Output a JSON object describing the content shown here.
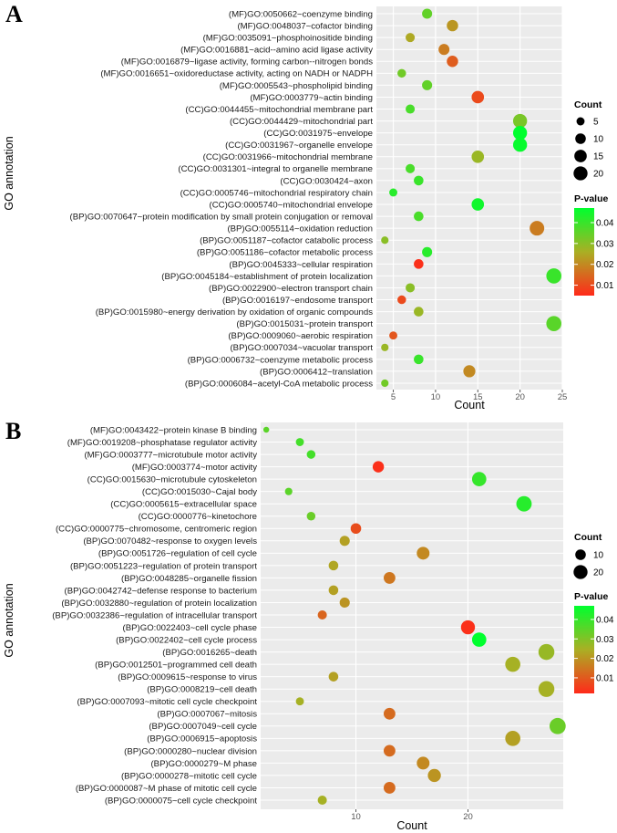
{
  "chart_data": [
    {
      "panel": "A",
      "type": "scatter",
      "xlabel": "Count",
      "ylabel": "GO annotation",
      "xlim": [
        3,
        25
      ],
      "xticks": [
        5,
        10,
        15,
        20,
        25
      ],
      "grid": true,
      "legend": {
        "size_title": "Count",
        "size_breaks": [
          5,
          10,
          15,
          20
        ],
        "color_title": "P-value",
        "color_breaks": [
          0.04,
          0.03,
          0.02,
          0.01
        ],
        "color_range": [
          0.005,
          0.047
        ],
        "colors": [
          "#ff2a1a",
          "#00ff2e"
        ],
        "placement": "right"
      },
      "points": [
        {
          "term": "(MF)GO:0050662~coenzyme binding",
          "count": 9,
          "p": 0.035
        },
        {
          "term": "(MF)GO:0048037~cofactor binding",
          "count": 12,
          "p": 0.022
        },
        {
          "term": "(MF)GO:0035091~phosphoinositide binding",
          "count": 7,
          "p": 0.025
        },
        {
          "term": "(MF)GO:0016881~acid--amino acid ligase activity",
          "count": 11,
          "p": 0.018
        },
        {
          "term": "(MF)GO:0016879~ligase activity, forming carbon--nitrogen bonds",
          "count": 12,
          "p": 0.013
        },
        {
          "term": "(MF)GO:0016651~oxidoreductase activity, acting on NADH or NADPH",
          "count": 6,
          "p": 0.033
        },
        {
          "term": "(MF)GO:0005543~phospholipid binding",
          "count": 9,
          "p": 0.035
        },
        {
          "term": "(MF)GO:0003779~actin binding",
          "count": 15,
          "p": 0.01
        },
        {
          "term": "(CC)GO:0044455~mitochondrial membrane part",
          "count": 7,
          "p": 0.038
        },
        {
          "term": "(CC)GO:0044429~mitochondrial part",
          "count": 20,
          "p": 0.032
        },
        {
          "term": "(CC)GO:0031975~envelope",
          "count": 20,
          "p": 0.047
        },
        {
          "term": "(CC)GO:0031967~organelle envelope",
          "count": 20,
          "p": 0.046
        },
        {
          "term": "(CC)GO:0031966~mitochondrial membrane",
          "count": 15,
          "p": 0.028
        },
        {
          "term": "(CC)GO:0031301~integral to organelle membrane",
          "count": 7,
          "p": 0.038
        },
        {
          "term": "(CC)GO:0030424~axon",
          "count": 8,
          "p": 0.04
        },
        {
          "term": "(CC)GO:0005746~mitochondrial respiratory chain",
          "count": 5,
          "p": 0.042
        },
        {
          "term": "(CC)GO:0005740~mitochondrial envelope",
          "count": 15,
          "p": 0.045
        },
        {
          "term": "(BP)GO:0070647~protein modification by small protein conjugation or removal",
          "count": 8,
          "p": 0.038
        },
        {
          "term": "(BP)GO:0055114~oxidation reduction",
          "count": 22,
          "p": 0.018
        },
        {
          "term": "(BP)GO:0051187~cofactor catabolic process",
          "count": 4,
          "p": 0.03
        },
        {
          "term": "(BP)GO:0051186~cofactor metabolic process",
          "count": 9,
          "p": 0.042
        },
        {
          "term": "(BP)GO:0045333~cellular respiration",
          "count": 8,
          "p": 0.006
        },
        {
          "term": "(BP)GO:0045184~establishment of protein localization",
          "count": 24,
          "p": 0.04
        },
        {
          "term": "(BP)GO:0022900~electron transport chain",
          "count": 7,
          "p": 0.03
        },
        {
          "term": "(BP)GO:0016197~endosome transport",
          "count": 6,
          "p": 0.01
        },
        {
          "term": "(BP)GO:0015980~energy derivation by oxidation of organic compounds",
          "count": 8,
          "p": 0.028
        },
        {
          "term": "(BP)GO:0015031~protein transport",
          "count": 24,
          "p": 0.036
        },
        {
          "term": "(BP)GO:0009060~aerobic respiration",
          "count": 5,
          "p": 0.012
        },
        {
          "term": "(BP)GO:0007034~vacuolar transport",
          "count": 4,
          "p": 0.028
        },
        {
          "term": "(BP)GO:0006732~coenzyme metabolic process",
          "count": 8,
          "p": 0.04
        },
        {
          "term": "(BP)GO:0006412~translation",
          "count": 14,
          "p": 0.02
        },
        {
          "term": "(BP)GO:0006084~acetyl-CoA metabolic process",
          "count": 4,
          "p": 0.033
        }
      ]
    },
    {
      "panel": "B",
      "type": "scatter",
      "xlabel": "Count",
      "ylabel": "GO annotation",
      "xlim": [
        1.5,
        28.5
      ],
      "xticks": [
        10,
        20
      ],
      "grid": true,
      "legend": {
        "size_title": "Count",
        "size_breaks": [
          10,
          20
        ],
        "color_title": "P-value",
        "color_breaks": [
          0.04,
          0.03,
          0.02,
          0.01
        ],
        "color_range": [
          0.002,
          0.047
        ],
        "colors": [
          "#ff2a1a",
          "#00ff2e"
        ],
        "placement": "right"
      },
      "points": [
        {
          "term": "(MF)GO:0043422~protein kinase B binding",
          "count": 2,
          "p": 0.035
        },
        {
          "term": "(MF)GO:0019208~phosphatase regulator activity",
          "count": 5,
          "p": 0.038
        },
        {
          "term": "(MF)GO:0003777~microtubule motor activity",
          "count": 6,
          "p": 0.038
        },
        {
          "term": "(MF)GO:0003774~motor activity",
          "count": 12,
          "p": 0.003
        },
        {
          "term": "(CC)GO:0015630~microtubule cytoskeleton",
          "count": 21,
          "p": 0.04
        },
        {
          "term": "(CC)GO:0015030~Cajal body",
          "count": 4,
          "p": 0.035
        },
        {
          "term": "(CC)GO:0005615~extracellular space",
          "count": 25,
          "p": 0.042
        },
        {
          "term": "(CC)GO:0000776~kinetochore",
          "count": 6,
          "p": 0.033
        },
        {
          "term": "(CC)GO:0000775~chromosome, centromeric region",
          "count": 10,
          "p": 0.008
        },
        {
          "term": "(BP)GO:0070482~response to oxygen levels",
          "count": 9,
          "p": 0.022
        },
        {
          "term": "(BP)GO:0051726~regulation of cell cycle",
          "count": 16,
          "p": 0.018
        },
        {
          "term": "(BP)GO:0051223~regulation of protein transport",
          "count": 8,
          "p": 0.023
        },
        {
          "term": "(BP)GO:0048285~organelle fission",
          "count": 13,
          "p": 0.015
        },
        {
          "term": "(BP)GO:0042742~defense response to bacterium",
          "count": 8,
          "p": 0.022
        },
        {
          "term": "(BP)GO:0032880~regulation of protein localization",
          "count": 9,
          "p": 0.02
        },
        {
          "term": "(BP)GO:0032386~regulation of intracellular transport",
          "count": 7,
          "p": 0.012
        },
        {
          "term": "(BP)GO:0022403~cell cycle phase",
          "count": 20,
          "p": 0.003
        },
        {
          "term": "(BP)GO:0022402~cell cycle process",
          "count": 21,
          "p": 0.047
        },
        {
          "term": "(BP)GO:0016265~death",
          "count": 27,
          "p": 0.027
        },
        {
          "term": "(BP)GO:0012501~programmed cell death",
          "count": 24,
          "p": 0.025
        },
        {
          "term": "(BP)GO:0009615~response to virus",
          "count": 8,
          "p": 0.022
        },
        {
          "term": "(BP)GO:0008219~cell death",
          "count": 27,
          "p": 0.025
        },
        {
          "term": "(BP)GO:0007093~mitotic cell cycle checkpoint",
          "count": 5,
          "p": 0.025
        },
        {
          "term": "(BP)GO:0007067~mitosis",
          "count": 13,
          "p": 0.013
        },
        {
          "term": "(BP)GO:0007049~cell cycle",
          "count": 28,
          "p": 0.033
        },
        {
          "term": "(BP)GO:0006915~apoptosis",
          "count": 24,
          "p": 0.022
        },
        {
          "term": "(BP)GO:0000280~nuclear division",
          "count": 13,
          "p": 0.013
        },
        {
          "term": "(BP)GO:0000279~M phase",
          "count": 16,
          "p": 0.018
        },
        {
          "term": "(BP)GO:0000278~mitotic cell cycle",
          "count": 17,
          "p": 0.02
        },
        {
          "term": "(BP)GO:0000087~M phase of mitotic cell cycle",
          "count": 13,
          "p": 0.013
        },
        {
          "term": "(BP)GO:0000075~cell cycle checkpoint",
          "count": 7,
          "p": 0.025
        }
      ]
    }
  ]
}
